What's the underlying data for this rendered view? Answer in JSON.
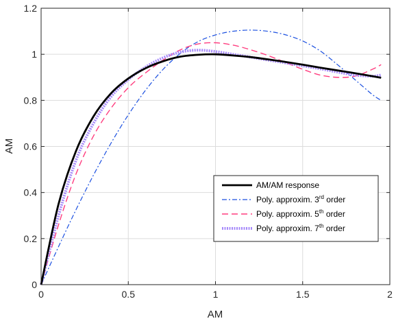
{
  "chart_data": {
    "type": "line",
    "title": "",
    "xlabel": "AM",
    "ylabel": "AM",
    "xlim": [
      0,
      2
    ],
    "ylim": [
      0,
      1.2
    ],
    "xticks": [
      0,
      0.5,
      1,
      1.5,
      2
    ],
    "xtick_labels": [
      "0",
      "0.5",
      "1",
      "1.5",
      "2"
    ],
    "yticks": [
      0,
      0.2,
      0.4,
      0.6,
      0.8,
      1,
      1.2
    ],
    "ytick_labels": [
      "0",
      "0.2",
      "0.4",
      "0.6",
      "0.8",
      "1",
      "1.2"
    ],
    "grid": true,
    "legend_position": "bottom-right",
    "series": [
      {
        "name": "AM/AM response",
        "legend": {
          "main": "AM/AM response",
          "sup": "",
          "tail": ""
        },
        "color": "#000000",
        "style": "solid",
        "x": [
          0,
          0.1,
          0.2,
          0.3,
          0.4,
          0.5,
          0.6,
          0.7,
          0.8,
          0.9,
          1.0,
          1.1,
          1.2,
          1.3,
          1.4,
          1.5,
          1.6,
          1.7,
          1.8,
          1.9,
          1.95
        ],
        "y": [
          0,
          0.35,
          0.58,
          0.73,
          0.83,
          0.895,
          0.94,
          0.97,
          0.99,
          0.998,
          1.0,
          0.995,
          0.988,
          0.978,
          0.967,
          0.955,
          0.942,
          0.93,
          0.918,
          0.905,
          0.898
        ]
      },
      {
        "name": "Poly. approxim. 3rd order",
        "legend": {
          "main": "Poly. approxim. 3",
          "sup": "rd",
          "tail": " order"
        },
        "color": "#1a4fe0",
        "style": "dashdot",
        "x": [
          0,
          0.1,
          0.2,
          0.3,
          0.4,
          0.5,
          0.6,
          0.7,
          0.8,
          0.9,
          1.0,
          1.1,
          1.2,
          1.3,
          1.4,
          1.5,
          1.6,
          1.7,
          1.8,
          1.9,
          1.95
        ],
        "y": [
          0,
          0.165,
          0.325,
          0.475,
          0.613,
          0.737,
          0.845,
          0.935,
          1.005,
          1.055,
          1.084,
          1.1,
          1.105,
          1.1,
          1.085,
          1.058,
          1.015,
          0.955,
          0.89,
          0.825,
          0.8
        ]
      },
      {
        "name": "Poly. approxim. 5th order",
        "legend": {
          "main": "Poly. approxim. 5",
          "sup": "th",
          "tail": " order"
        },
        "color": "#ff3d7f",
        "style": "dashed",
        "x": [
          0,
          0.1,
          0.2,
          0.3,
          0.4,
          0.5,
          0.6,
          0.7,
          0.8,
          0.9,
          1.0,
          1.1,
          1.2,
          1.3,
          1.4,
          1.5,
          1.6,
          1.7,
          1.8,
          1.9,
          1.95
        ],
        "y": [
          0,
          0.26,
          0.48,
          0.645,
          0.765,
          0.855,
          0.92,
          0.975,
          1.02,
          1.045,
          1.05,
          1.04,
          1.02,
          0.995,
          0.965,
          0.935,
          0.91,
          0.9,
          0.905,
          0.935,
          0.955
        ]
      },
      {
        "name": "Poly. approxim. 7th order",
        "legend": {
          "main": "Poly. approxim. 7",
          "sup": "th",
          "tail": " order"
        },
        "color": "#a78bfa",
        "style": "dotted-thick",
        "x": [
          0,
          0.1,
          0.2,
          0.3,
          0.4,
          0.5,
          0.6,
          0.7,
          0.8,
          0.9,
          1.0,
          1.1,
          1.2,
          1.3,
          1.4,
          1.5,
          1.6,
          1.7,
          1.8,
          1.9,
          1.95
        ],
        "y": [
          0,
          0.3,
          0.54,
          0.7,
          0.815,
          0.89,
          0.945,
          0.985,
          1.01,
          1.018,
          1.012,
          1.0,
          0.988,
          0.975,
          0.963,
          0.95,
          0.937,
          0.923,
          0.91,
          0.905,
          0.91
        ]
      }
    ]
  }
}
